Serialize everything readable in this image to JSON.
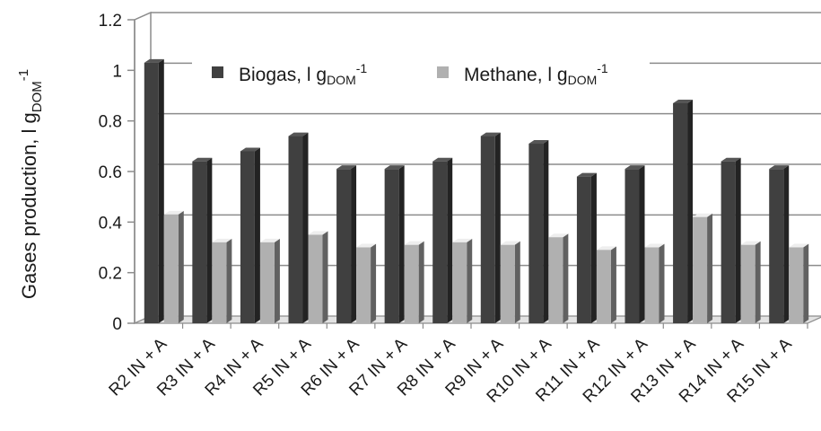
{
  "chart_data": {
    "type": "bar",
    "style": "3d-clustered-column",
    "ylabel_main": "Gases production, l g",
    "ylabel_sub": "DOM",
    "ylabel_sup": "-1",
    "ylim": [
      0,
      1.2
    ],
    "yticks": [
      "0",
      "0.2",
      "0.4",
      "0.6",
      "0.8",
      "1",
      "1.2"
    ],
    "grid": true,
    "legend_position": "top",
    "categories": [
      "R2 IN + A",
      "R3 IN + A",
      "R4 IN + A",
      "R5 IN + A",
      "R6 IN + A",
      "R7 IN + A",
      "R8 IN + A",
      "R9 IN + A",
      "R10 IN + A",
      "R11 IN + A",
      "R12 IN + A",
      "R13 IN + A",
      "R14 IN + A",
      "R15 IN + A"
    ],
    "series": [
      {
        "name": "Biogas",
        "legend_main": "Biogas, l g",
        "legend_sub": "DOM",
        "legend_sup": "-1",
        "color": "#404040",
        "values": [
          1.03,
          0.64,
          0.68,
          0.74,
          0.61,
          0.61,
          0.64,
          0.74,
          0.71,
          0.58,
          0.61,
          0.87,
          0.64,
          0.61
        ]
      },
      {
        "name": "Methane",
        "legend_main": "Methane, l g",
        "legend_sub": "DOM",
        "legend_sup": "-1",
        "color": "#b0b0b0",
        "values": [
          0.43,
          0.32,
          0.32,
          0.35,
          0.3,
          0.31,
          0.32,
          0.31,
          0.34,
          0.29,
          0.3,
          0.42,
          0.31,
          0.3
        ]
      }
    ]
  }
}
